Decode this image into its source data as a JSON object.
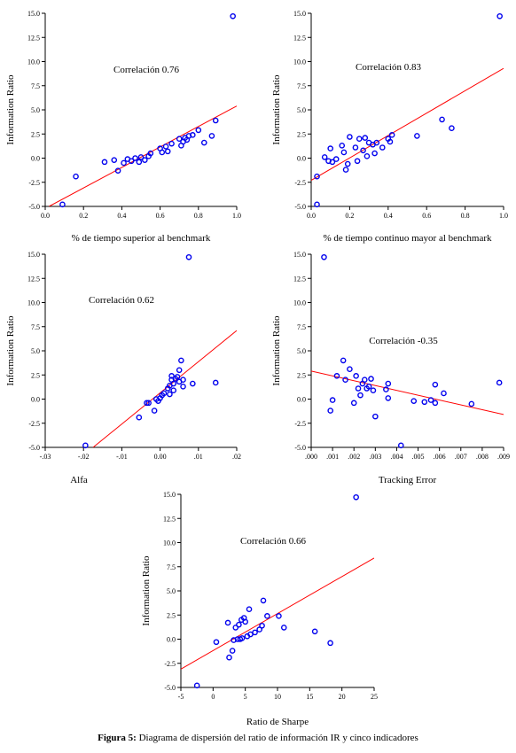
{
  "caption": {
    "label": "Figura 5:",
    "text": "Diagrama de dispersión del ratio de información IR y cinco indicadores"
  },
  "colors": {
    "points": "#0000ee",
    "fit_line": "#ff0000",
    "axes": "#000000"
  },
  "chart_data": [
    {
      "type": "scatter",
      "annotation": "Correlación 0.76",
      "xlabel": "% de tiempo superior al benchmark",
      "ylabel": "Information Ratio",
      "xlim": [
        0.0,
        1.0
      ],
      "ylim": [
        -5.0,
        15.0
      ],
      "xticks": [
        0.0,
        0.2,
        0.4,
        0.6,
        0.8,
        1.0
      ],
      "xtick_labels": [
        "0.0",
        "0.2",
        "0.4",
        "0.6",
        "0.8",
        "1.0"
      ],
      "yticks": [
        -5,
        -2.5,
        0,
        2.5,
        5,
        7.5,
        10,
        12.5,
        15
      ],
      "ytick_labels": [
        "-5.0",
        "-2.5",
        "0.0",
        "2.5",
        "5.0",
        "7.5",
        "10.0",
        "12.5",
        "15.0"
      ],
      "fit_line": [
        [
          0.02,
          -5.0
        ],
        [
          1.0,
          5.4
        ]
      ],
      "points": [
        [
          0.09,
          -4.8
        ],
        [
          0.16,
          -1.9
        ],
        [
          0.31,
          -0.4
        ],
        [
          0.36,
          -0.2
        ],
        [
          0.38,
          -1.3
        ],
        [
          0.41,
          -0.5
        ],
        [
          0.43,
          -0.1
        ],
        [
          0.45,
          -0.3
        ],
        [
          0.47,
          0.0
        ],
        [
          0.49,
          -0.4
        ],
        [
          0.5,
          0.1
        ],
        [
          0.52,
          -0.2
        ],
        [
          0.54,
          0.2
        ],
        [
          0.55,
          0.5
        ],
        [
          0.6,
          1.0
        ],
        [
          0.61,
          0.6
        ],
        [
          0.63,
          1.2
        ],
        [
          0.64,
          0.7
        ],
        [
          0.66,
          1.5
        ],
        [
          0.7,
          2.0
        ],
        [
          0.71,
          1.3
        ],
        [
          0.72,
          1.7
        ],
        [
          0.73,
          2.1
        ],
        [
          0.74,
          1.9
        ],
        [
          0.75,
          2.3
        ],
        [
          0.77,
          2.4
        ],
        [
          0.8,
          2.9
        ],
        [
          0.83,
          1.6
        ],
        [
          0.87,
          2.3
        ],
        [
          0.89,
          3.9
        ],
        [
          0.98,
          14.7
        ]
      ]
    },
    {
      "type": "scatter",
      "annotation": "Correlación 0.83",
      "xlabel": "% de tiempo continuo mayor al benchmark",
      "ylabel": "Information Ratio",
      "xlim": [
        0.0,
        1.0
      ],
      "ylim": [
        -5.0,
        15.0
      ],
      "xticks": [
        0.0,
        0.2,
        0.4,
        0.6,
        0.8,
        1.0
      ],
      "xtick_labels": [
        "0.0",
        "0.2",
        "0.4",
        "0.6",
        "0.8",
        "1.0"
      ],
      "yticks": [
        -5,
        -2.5,
        0,
        2.5,
        5,
        7.5,
        10,
        12.5,
        15
      ],
      "ytick_labels": [
        "-5.0",
        "-2.5",
        "0.0",
        "2.5",
        "5.0",
        "7.5",
        "10.0",
        "12.5",
        "15.0"
      ],
      "fit_line": [
        [
          0.0,
          -2.3
        ],
        [
          1.0,
          9.3
        ]
      ],
      "points": [
        [
          0.03,
          -1.9
        ],
        [
          0.03,
          -4.8
        ],
        [
          0.07,
          0.1
        ],
        [
          0.09,
          -0.3
        ],
        [
          0.1,
          1.0
        ],
        [
          0.11,
          -0.4
        ],
        [
          0.13,
          -0.1
        ],
        [
          0.16,
          1.3
        ],
        [
          0.17,
          0.6
        ],
        [
          0.18,
          -1.2
        ],
        [
          0.19,
          -0.6
        ],
        [
          0.2,
          2.2
        ],
        [
          0.23,
          1.1
        ],
        [
          0.24,
          -0.3
        ],
        [
          0.25,
          2.0
        ],
        [
          0.27,
          0.8
        ],
        [
          0.28,
          2.1
        ],
        [
          0.29,
          0.2
        ],
        [
          0.3,
          1.6
        ],
        [
          0.32,
          1.4
        ],
        [
          0.33,
          0.5
        ],
        [
          0.34,
          1.6
        ],
        [
          0.37,
          1.1
        ],
        [
          0.4,
          2.0
        ],
        [
          0.41,
          1.7
        ],
        [
          0.42,
          2.4
        ],
        [
          0.55,
          2.3
        ],
        [
          0.68,
          4.0
        ],
        [
          0.73,
          3.1
        ],
        [
          0.98,
          14.7
        ]
      ]
    },
    {
      "type": "scatter",
      "annotation": "Correlación 0.62",
      "xlabel": "Alfa",
      "ylabel": "Information Ratio",
      "xlim": [
        -0.03,
        0.02
      ],
      "ylim": [
        -5.0,
        15.0
      ],
      "xticks": [
        -0.03,
        -0.02,
        -0.01,
        0.0,
        0.01,
        0.02
      ],
      "xtick_labels": [
        "-.03",
        "-.02",
        "-.01",
        "0.00",
        ".01",
        ".02"
      ],
      "yticks": [
        -5,
        -2.5,
        0,
        2.5,
        5,
        7.5,
        10,
        12.5,
        15
      ],
      "ytick_labels": [
        "-5.0",
        "-2.5",
        "0.0",
        "2.5",
        "5.0",
        "7.5",
        "10.0",
        "12.5",
        "15.0"
      ],
      "fit_line": [
        [
          -0.0175,
          -5.0
        ],
        [
          0.02,
          7.1
        ]
      ],
      "points": [
        [
          -0.0195,
          -4.8
        ],
        [
          -0.0055,
          -1.9
        ],
        [
          -0.0035,
          -0.4
        ],
        [
          -0.003,
          -0.4
        ],
        [
          -0.0015,
          -1.2
        ],
        [
          -0.001,
          0.0
        ],
        [
          -0.0005,
          -0.2
        ],
        [
          0.0,
          0.1
        ],
        [
          0.0005,
          0.4
        ],
        [
          0.001,
          0.6
        ],
        [
          0.002,
          1.1
        ],
        [
          0.0025,
          0.5
        ],
        [
          0.0025,
          1.4
        ],
        [
          0.003,
          2.0
        ],
        [
          0.003,
          2.4
        ],
        [
          0.0035,
          0.9
        ],
        [
          0.0035,
          1.6
        ],
        [
          0.004,
          2.1
        ],
        [
          0.0045,
          2.3
        ],
        [
          0.005,
          1.8
        ],
        [
          0.005,
          3.0
        ],
        [
          0.0055,
          4.0
        ],
        [
          0.006,
          1.3
        ],
        [
          0.006,
          2.0
        ],
        [
          0.0075,
          14.7
        ],
        [
          0.0085,
          1.6
        ],
        [
          0.0145,
          1.7
        ]
      ]
    },
    {
      "type": "scatter",
      "annotation": "Correlación -0.35",
      "xlabel": "Tracking Error",
      "ylabel": "Information Ratio",
      "xlim": [
        0.0,
        0.009
      ],
      "ylim": [
        -5.0,
        15.0
      ],
      "xticks": [
        0.0,
        0.001,
        0.002,
        0.003,
        0.004,
        0.005,
        0.006,
        0.007,
        0.008,
        0.009
      ],
      "xtick_labels": [
        ".000",
        ".001",
        ".002",
        ".003",
        ".004",
        ".005",
        ".006",
        ".007",
        ".008",
        ".009"
      ],
      "yticks": [
        -5,
        -2.5,
        0,
        2.5,
        5,
        7.5,
        10,
        12.5,
        15
      ],
      "ytick_labels": [
        "-5.0",
        "-2.5",
        "0.0",
        "2.5",
        "5.0",
        "7.5",
        "10.0",
        "12.5",
        "15.0"
      ],
      "fit_line": [
        [
          0.0,
          2.9
        ],
        [
          0.009,
          -1.6
        ]
      ],
      "points": [
        [
          0.0006,
          14.7
        ],
        [
          0.0009,
          -1.2
        ],
        [
          0.001,
          -0.1
        ],
        [
          0.0012,
          2.4
        ],
        [
          0.0015,
          4.0
        ],
        [
          0.0016,
          2.0
        ],
        [
          0.0018,
          3.1
        ],
        [
          0.002,
          -0.4
        ],
        [
          0.0021,
          2.4
        ],
        [
          0.0022,
          1.1
        ],
        [
          0.0023,
          0.4
        ],
        [
          0.0024,
          1.6
        ],
        [
          0.0025,
          2.0
        ],
        [
          0.0026,
          1.1
        ],
        [
          0.0027,
          1.3
        ],
        [
          0.0028,
          2.1
        ],
        [
          0.0029,
          0.9
        ],
        [
          0.003,
          -1.8
        ],
        [
          0.0035,
          1.0
        ],
        [
          0.0036,
          1.6
        ],
        [
          0.0036,
          0.1
        ],
        [
          0.0042,
          -4.8
        ],
        [
          0.0048,
          -0.2
        ],
        [
          0.0053,
          -0.3
        ],
        [
          0.0056,
          -0.1
        ],
        [
          0.0058,
          1.5
        ],
        [
          0.0058,
          -0.4
        ],
        [
          0.0062,
          0.6
        ],
        [
          0.0075,
          -0.5
        ],
        [
          0.0088,
          1.7
        ]
      ]
    },
    {
      "type": "scatter",
      "annotation": "Correlación 0.66",
      "xlabel": "Ratio de Sharpe",
      "ylabel": "Information Ratio",
      "xlim": [
        -5,
        25
      ],
      "ylim": [
        -5.0,
        15.0
      ],
      "xticks": [
        -5,
        0,
        5,
        10,
        15,
        20,
        25
      ],
      "xtick_labels": [
        "-5",
        "0",
        "5",
        "10",
        "15",
        "20",
        "25"
      ],
      "yticks": [
        -5,
        -2.5,
        0,
        2.5,
        5,
        7.5,
        10,
        12.5,
        15
      ],
      "ytick_labels": [
        "-5.0",
        "-2.5",
        "0.0",
        "2.5",
        "5.0",
        "7.5",
        "10.0",
        "12.5",
        "15.0"
      ],
      "fit_line": [
        [
          -5,
          -3.1
        ],
        [
          25,
          8.4
        ]
      ],
      "points": [
        [
          -2.5,
          -4.8
        ],
        [
          0.5,
          -0.3
        ],
        [
          2.3,
          1.7
        ],
        [
          2.5,
          -1.9
        ],
        [
          3.0,
          -1.2
        ],
        [
          3.2,
          -0.1
        ],
        [
          3.5,
          1.2
        ],
        [
          3.8,
          0.0
        ],
        [
          4.0,
          1.5
        ],
        [
          4.2,
          0.0
        ],
        [
          4.4,
          2.0
        ],
        [
          4.5,
          0.1
        ],
        [
          4.8,
          2.2
        ],
        [
          5.0,
          1.8
        ],
        [
          5.3,
          0.3
        ],
        [
          5.6,
          3.1
        ],
        [
          5.8,
          0.5
        ],
        [
          6.5,
          0.7
        ],
        [
          7.2,
          1.0
        ],
        [
          7.6,
          1.4
        ],
        [
          7.8,
          4.0
        ],
        [
          8.4,
          2.4
        ],
        [
          10.2,
          2.4
        ],
        [
          11.0,
          1.2
        ],
        [
          15.8,
          0.8
        ],
        [
          18.2,
          -0.4
        ],
        [
          22.2,
          14.7
        ]
      ]
    }
  ]
}
